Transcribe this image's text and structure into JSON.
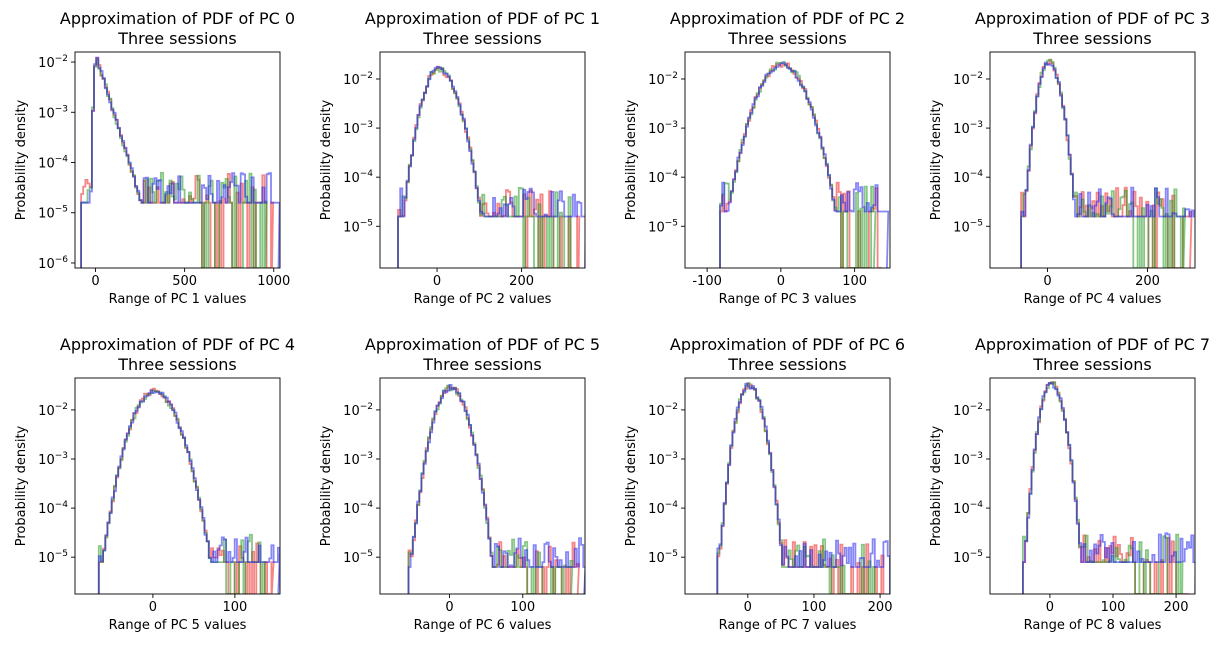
{
  "chart_data": [
    {
      "type": "histogram",
      "title": "Approximation of PDF of PC 0",
      "subtitle": "Three sessions",
      "xlabel": "Range of PC 1 values",
      "ylabel": "Probability density",
      "yscale": "log",
      "xlim": [
        -115,
        1035
      ],
      "ylim": [
        -6.1,
        -1.8
      ],
      "xticks": [
        0,
        500,
        1000
      ],
      "yticks": [
        -2,
        -3,
        -4,
        -5,
        -6
      ],
      "shape": {
        "mode": 0,
        "peak": -1.9,
        "sigma_left": 18,
        "decay_right": 0.0115,
        "tail_end": 990,
        "floor": -4.8
      },
      "series": [
        {
          "name": "",
          "color": "#ee2222"
        },
        {
          "name": "",
          "color": "#229922"
        },
        {
          "name": "",
          "color": "#2222ee"
        }
      ]
    },
    {
      "type": "histogram",
      "title": "Approximation of PDF of PC 1",
      "subtitle": "Three sessions",
      "xlabel": "Range of PC 2 values",
      "ylabel": "Probability density",
      "yscale": "log",
      "xlim": [
        -135,
        350
      ],
      "ylim": [
        -5.85,
        -1.45
      ],
      "xticks": [
        0,
        200
      ],
      "yticks": [
        -2,
        -3,
        -4,
        -5
      ],
      "shape": {
        "mode": 0,
        "peak": -1.8,
        "sigma_left": 28,
        "sigma_right": 35,
        "tail_end": 335,
        "floor": -4.8
      },
      "series": [
        {
          "name": "",
          "color": "#ee2222"
        },
        {
          "name": "",
          "color": "#229922"
        },
        {
          "name": "",
          "color": "#2222ee"
        }
      ]
    },
    {
      "type": "histogram",
      "title": "Approximation of PDF of PC 2",
      "subtitle": "Three sessions",
      "xlabel": "Range of PC 3 values",
      "ylabel": "Probability density",
      "yscale": "log",
      "xlim": [
        -130,
        148
      ],
      "ylim": [
        -5.85,
        -1.45
      ],
      "xticks": [
        -100,
        0,
        100
      ],
      "yticks": [
        -2,
        -3,
        -4,
        -5
      ],
      "shape": {
        "mode": 0,
        "peak": -1.7,
        "sigma_left": 25,
        "sigma_right": 25,
        "tail_end": 135,
        "floor": -4.7
      },
      "series": [
        {
          "name": "",
          "color": "#ee2222"
        },
        {
          "name": "",
          "color": "#229922"
        },
        {
          "name": "",
          "color": "#2222ee"
        }
      ]
    },
    {
      "type": "histogram",
      "title": "Approximation of PDF of PC 3",
      "subtitle": "Three sessions",
      "xlabel": "Range of PC 4 values",
      "ylabel": "Probability density",
      "yscale": "log",
      "xlim": [
        -115,
        295
      ],
      "ylim": [
        -5.85,
        -1.45
      ],
      "xticks": [
        0,
        200
      ],
      "yticks": [
        -2,
        -3,
        -4,
        -5
      ],
      "shape": {
        "mode": 0,
        "peak": -1.65,
        "sigma_left": 16,
        "sigma_right": 18,
        "tail_end": 285,
        "floor": -4.8
      },
      "series": [
        {
          "name": "",
          "color": "#ee2222"
        },
        {
          "name": "",
          "color": "#229922"
        },
        {
          "name": "",
          "color": "#2222ee"
        }
      ]
    },
    {
      "type": "histogram",
      "title": "Approximation of PDF of PC 4",
      "subtitle": "Three sessions",
      "xlabel": "Range of PC 5 values",
      "ylabel": "Probability density",
      "yscale": "log",
      "xlim": [
        -95,
        155
      ],
      "ylim": [
        -5.75,
        -1.35
      ],
      "xticks": [
        0,
        100
      ],
      "yticks": [
        -2,
        -3,
        -4,
        -5
      ],
      "shape": {
        "mode": 0,
        "peak": -1.62,
        "sigma_left": 20,
        "sigma_right": 22,
        "tail_end": 145,
        "floor": -5.1
      },
      "series": [
        {
          "name": "",
          "color": "#ee2222"
        },
        {
          "name": "",
          "color": "#229922"
        },
        {
          "name": "",
          "color": "#2222ee"
        }
      ]
    },
    {
      "type": "histogram",
      "title": "Approximation of PDF of PC 5",
      "subtitle": "Three sessions",
      "xlabel": "Range of PC 6 values",
      "ylabel": "Probability density",
      "yscale": "log",
      "xlim": [
        -95,
        185
      ],
      "ylim": [
        -5.75,
        -1.35
      ],
      "xticks": [
        0,
        100
      ],
      "yticks": [
        -2,
        -3,
        -4,
        -5
      ],
      "shape": {
        "mode": 0,
        "peak": -1.55,
        "sigma_left": 17,
        "sigma_right": 18,
        "tail_end": 175,
        "floor": -5.2
      },
      "series": [
        {
          "name": "",
          "color": "#ee2222"
        },
        {
          "name": "",
          "color": "#229922"
        },
        {
          "name": "",
          "color": "#2222ee"
        }
      ]
    },
    {
      "type": "histogram",
      "title": "Approximation of PDF of PC 6",
      "subtitle": "Three sessions",
      "xlabel": "Range of PC 7 values",
      "ylabel": "Probability density",
      "yscale": "log",
      "xlim": [
        -95,
        215
      ],
      "ylim": [
        -5.75,
        -1.35
      ],
      "xticks": [
        0,
        100,
        200
      ],
      "yticks": [
        -2,
        -3,
        -4,
        -5
      ],
      "shape": {
        "mode": 0,
        "peak": -1.5,
        "sigma_left": 14,
        "sigma_right": 16,
        "tail_end": 205,
        "floor": -5.2
      },
      "series": [
        {
          "name": "",
          "color": "#ee2222"
        },
        {
          "name": "",
          "color": "#229922"
        },
        {
          "name": "",
          "color": "#2222ee"
        }
      ]
    },
    {
      "type": "histogram",
      "title": "Approximation of PDF of PC 7",
      "subtitle": "Three sessions",
      "xlabel": "Range of PC 8 values",
      "ylabel": "Probability density",
      "yscale": "log",
      "xlim": [
        -95,
        230
      ],
      "ylim": [
        -5.75,
        -1.35
      ],
      "xticks": [
        0,
        100,
        200
      ],
      "yticks": [
        -2,
        -3,
        -4,
        -5
      ],
      "shape": {
        "mode": 0,
        "peak": -1.45,
        "sigma_left": 13,
        "sigma_right": 15,
        "tail_end": 220,
        "floor": -5.1
      },
      "series": [
        {
          "name": "",
          "color": "#ee2222"
        },
        {
          "name": "",
          "color": "#229922"
        },
        {
          "name": "",
          "color": "#2222ee"
        }
      ]
    }
  ]
}
